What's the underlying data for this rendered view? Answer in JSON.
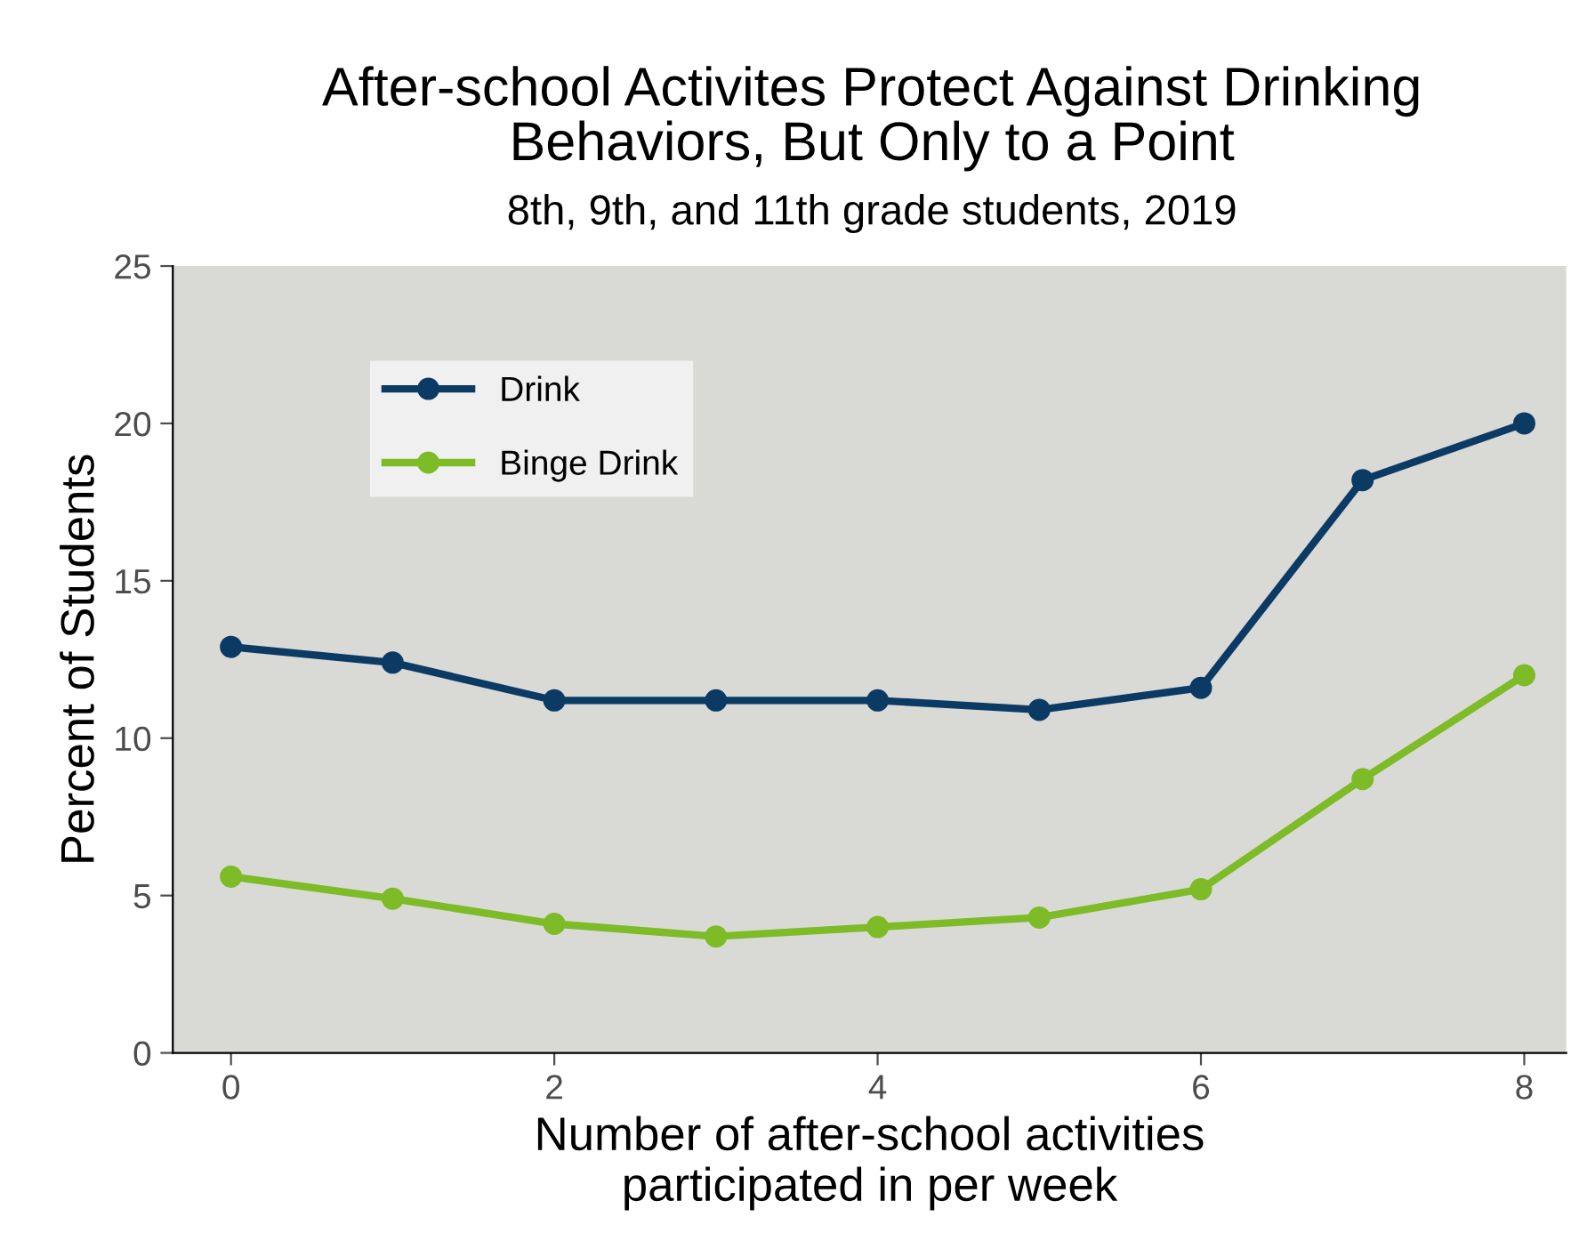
{
  "chart_data": {
    "type": "line",
    "title": "After-school Activites Protect Against Drinking\nBehaviors, But Only to a Point",
    "subtitle": "8th, 9th, and 11th grade students, 2019",
    "xlabel": "Number of after-school activities\nparticipated in per week",
    "ylabel": "Percent of Students",
    "x": [
      0,
      1,
      2,
      3,
      4,
      5,
      6,
      7,
      8
    ],
    "series": [
      {
        "name": "Drink",
        "color": "#0b3a64",
        "values": [
          12.9,
          12.4,
          11.2,
          11.2,
          11.2,
          10.9,
          11.6,
          18.2,
          20.0
        ]
      },
      {
        "name": "Binge Drink",
        "color": "#7dbb27",
        "values": [
          5.6,
          4.9,
          4.1,
          3.7,
          4.0,
          4.3,
          5.2,
          8.7,
          12.0
        ]
      }
    ],
    "xlim": [
      -0.36,
      8.26
    ],
    "xticks": [
      0,
      2,
      4,
      6,
      8
    ],
    "ylim": [
      0,
      25
    ],
    "yticks": [
      0,
      5,
      10,
      15,
      20,
      25
    ],
    "grid": false,
    "legend": "top left",
    "marker": "circle",
    "line_style": "solid"
  }
}
